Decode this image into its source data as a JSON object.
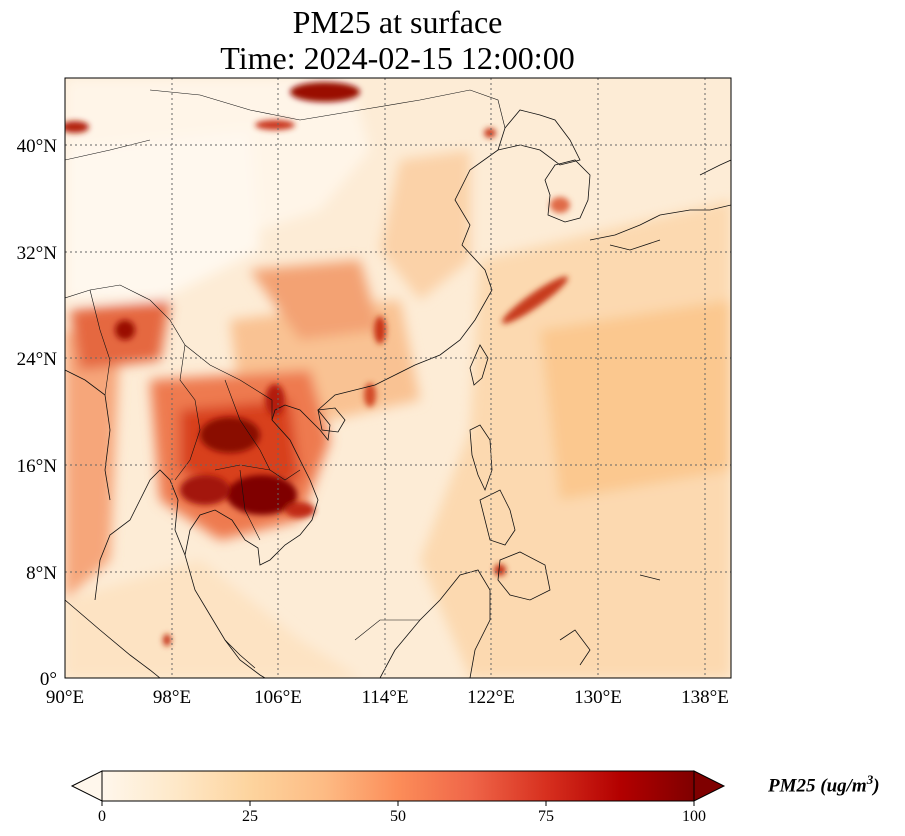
{
  "title": {
    "line1": "PM25 at surface",
    "line2": "Time: 2024-02-15 12:00:00"
  },
  "map": {
    "variable": "PM25",
    "lon_range": [
      90,
      139
    ],
    "lat_range": [
      0,
      44
    ],
    "x_ticks": [
      "90°E",
      "98°E",
      "106°E",
      "114°E",
      "122°E",
      "130°E",
      "138°E"
    ],
    "y_ticks": [
      "0°",
      "8°N",
      "16°N",
      "24°N",
      "32°N",
      "40°N"
    ],
    "gridlines": "dotted",
    "colormap": "OrRd",
    "coastlines": true,
    "country_borders": true
  },
  "colorbar": {
    "min": 0,
    "max": 100,
    "ticks": [
      "0",
      "25",
      "50",
      "75",
      "100"
    ],
    "label_main": "PM25 (ug/m",
    "label_sup": "3",
    "label_end": ")",
    "extend": "both",
    "colors": [
      "#fff7ec",
      "#fee8c8",
      "#fdd49e",
      "#fdbb84",
      "#fc8d59",
      "#ef6548",
      "#d7301f",
      "#b30000",
      "#7f0000"
    ]
  }
}
